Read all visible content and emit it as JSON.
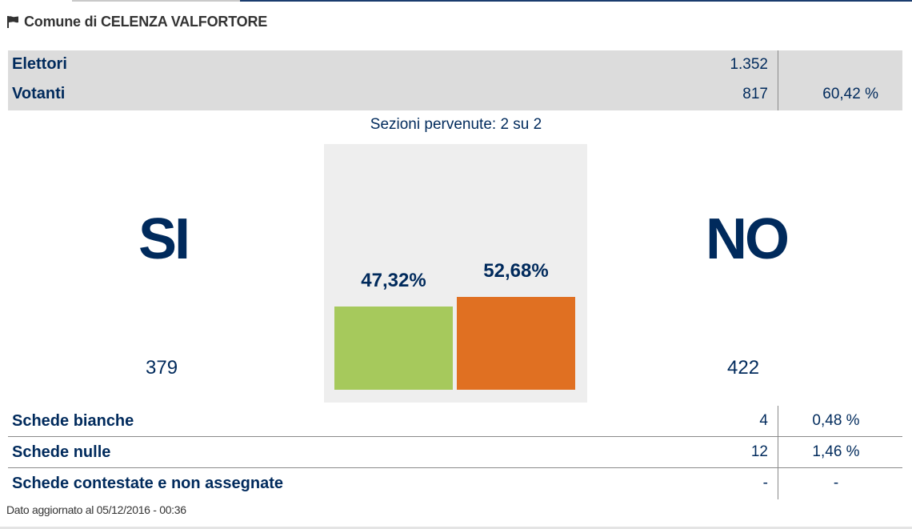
{
  "header": {
    "title": "Comune di CELENZA VALFORTORE",
    "icon": "flag-icon"
  },
  "voters": {
    "elettori_label": "Elettori",
    "elettori_value": "1.352",
    "votanti_label": "Votanti",
    "votanti_value": "817",
    "votanti_pct": "60,42 %"
  },
  "sezioni": "Sezioni pervenute: 2 su 2",
  "results": {
    "si": {
      "label": "SI",
      "count": "379",
      "pct_label": "47,32%",
      "pct": 47.32,
      "color": "#a6c95c"
    },
    "no": {
      "label": "NO",
      "count": "422",
      "pct_label": "52,68%",
      "pct": 52.68,
      "color": "#e07022"
    }
  },
  "schede": [
    {
      "label": "Schede bianche",
      "value": "4",
      "pct": "0,48 %"
    },
    {
      "label": "Schede nulle",
      "value": "12",
      "pct": "1,46 %"
    },
    {
      "label": "Schede contestate e non assegnate",
      "value": "-",
      "pct": "-"
    }
  ],
  "updated": "Dato aggiornato al 05/12/2016 - 00:36"
}
